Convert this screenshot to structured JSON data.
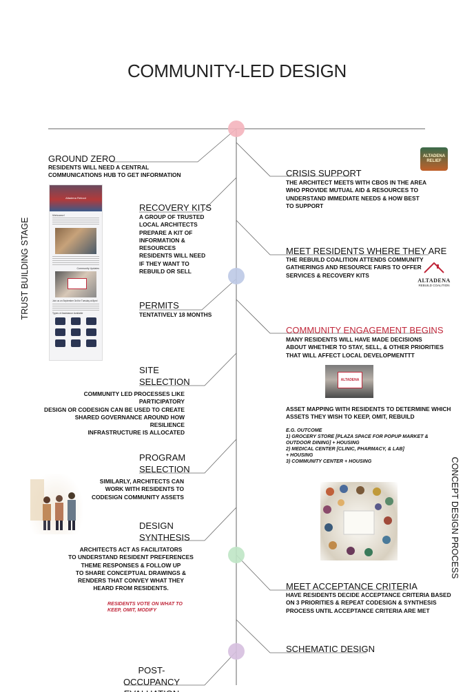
{
  "title": "COMMUNITY-LED DESIGN",
  "colors": {
    "pink": "#f4b4bd",
    "blue": "#bcc9e6",
    "green": "#bfe6c5",
    "purple": "#d6bfdf",
    "red": "#c0273a",
    "line": "#555555"
  },
  "side_labels": {
    "left": "TRUST BUILDING STAGE",
    "right": "CONCEPT DESIGN PROCESS"
  },
  "left": {
    "ground_zero": {
      "heading": "GROUND ZERO",
      "text": "RESIDENTS WILL NEED A CENTRAL\nCOMMUNICATIONS HUB TO GET INFORMATION"
    },
    "recovery_kits": {
      "heading": "RECOVERY KITS",
      "text": "A GROUP OF TRUSTED\nLOCAL ARCHITECTS\nPREPARE A KIT OF\nINFORMATION &\nRESOURCES\nRESIDENTS WILL NEED\nIF THEY WANT TO\nREBUILD OR SELL"
    },
    "permits": {
      "heading": "PERMITS",
      "text": "TENTATIVELY 18 MONTHS"
    },
    "site_selection": {
      "heading": "SITE\nSELECTION",
      "text": "COMMUNITY LED PROCESSES LIKE PARTICIPATORY\nDESIGN OR CODESIGN CAN BE USED TO CREATE\nSHARED GOVERNANCE AROUND HOW RESILIENCE\nINFRASTRUCTURE IS ALLOCATED"
    },
    "program_selection": {
      "heading": "PROGRAM\nSELECTION",
      "text": "SIMILARLY, ARCHITECTS CAN\nWORK WITH RESIDENTS TO\nCODESIGN COMMUNITY ASSETS"
    },
    "design_synthesis": {
      "heading": "DESIGN\nSYNTHESIS",
      "text": "ARCHITECTS ACT AS FACILITATORS\nTO UNDERSTAND RESIDENT PREFERENCES\nTHEME RESPONSES & FOLLOW UP\nTO SHARE CONCEPTUAL DRAWINGS &\nRENDERS THAT CONVEY WHAT THEY\nHEARD FROM RESIDENTS.",
      "note": "RESIDENTS VOTE ON WHAT TO\nKEEP, OMIT, MODIFY"
    },
    "post_occupancy": {
      "heading": "POST-OCCUPANCY\nEVALUATION"
    }
  },
  "right": {
    "crisis_support": {
      "heading": "CRISIS SUPPORT",
      "text": "THE ARCHITECT MEETS WITH CBOS IN THE AREA\nWHO PROVIDE MUTUAL AID & RESOURCES TO\nUNDERSTAND IMMEDIATE NEEDS & HOW BEST\nTO SUPPORT"
    },
    "meet_residents": {
      "heading": "MEET RESIDENTS WHERE THEY ARE",
      "text": "THE REBUILD COALITION ATTENDS COMMUNITY\nGATHERINGS AND RESOURCE FAIRS TO OFFER\nSERVICES & RECOVERY KITS"
    },
    "engagement": {
      "heading": "COMMUNITY ENGAGEMENT BEGINS",
      "text": "MANY RESIDENTS WILL HAVE MADE DECISIONS\nABOUT WHETHER TO STAY, SELL, & OTHER PRIORITIES\nTHAT WILL AFFECT LOCAL DEVELOPMENTTT"
    },
    "asset_mapping": {
      "text": "ASSET MAPPING WITH RESIDENTS TO DETERMINE WHICH\nASSETS THEY WISH TO KEEP, OMIT, REBUILD",
      "outcome": "E.G. OUTCOME\n1) GROCERY STORE [PLAZA SPACE FOR     POPUP MARKET &\n    OUTDOOR DINING] + HOUSING\n2) MEDICAL CENTER [CLINIC, PHARMACY, & LAB]\n+ HOUSING\n3) COMMUNITY CENTER + HOUSING"
    },
    "acceptance": {
      "heading": "MEET ACCEPTANCE CRITERIA",
      "text": "HAVE RESIDENTS DECIDE ACCEPTANCE CRITERIA BASED\nON 3 PRIORITIES & REPEAT CODESIGN & SYNTHESIS\nPROCESS UNTIL ACCEPTANCE CRITERIA ARE MET"
    },
    "schematic": {
      "heading": "SCHEMATIC DESIGN"
    }
  },
  "logos": {
    "altadena_top": "ALTADENA\nRELIEF",
    "coalition_name": "ALTADENA",
    "coalition_sub": "REBUILD COALITION",
    "sign_text": "ALTADENA"
  },
  "website": {
    "header": "Altadena Reboot",
    "welcome": "Welcome!",
    "community_updates": "Community Updates",
    "join_line": "Join us on September 3rd for Tuesday at 8pm!",
    "types_label": "Types of Assistance Available"
  }
}
